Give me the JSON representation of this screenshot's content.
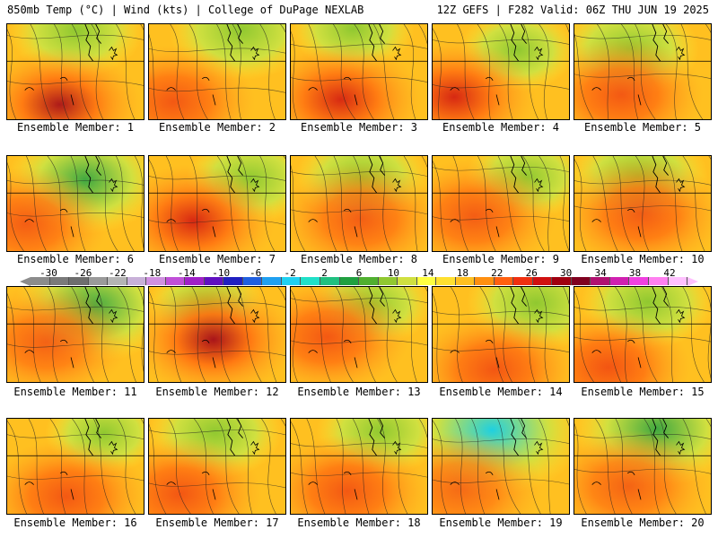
{
  "header": {
    "left": "850mb Temp (°C) | Wind (kts) | College of DuPage NEXLAB",
    "right": "12Z GEFS | F282 Valid: 06Z THU JUN 19 2025"
  },
  "colorbar": {
    "ticks": [
      "-30",
      "-26",
      "-22",
      "-18",
      "-14",
      "-10",
      "-6",
      "-2",
      "2",
      "6",
      "10",
      "14",
      "18",
      "22",
      "26",
      "30",
      "34",
      "38",
      "42"
    ],
    "colors": [
      "#8c8c8c",
      "#7a7a7a",
      "#6e6e6e",
      "#9a9a9a",
      "#b4b4b4",
      "#c8b0d8",
      "#d090e0",
      "#c050d8",
      "#a020c8",
      "#6010c0",
      "#2020c0",
      "#2060e0",
      "#20a0f0",
      "#20d0f0",
      "#20e0c8",
      "#20c080",
      "#20a040",
      "#50b030",
      "#90c830",
      "#d0e040",
      "#ffff40",
      "#ffe030",
      "#ffc020",
      "#ff9010",
      "#ff6010",
      "#f03010",
      "#d01010",
      "#a00010",
      "#800020",
      "#b01070",
      "#d020b0",
      "#f040e0",
      "#ff80f0",
      "#ffc0ff"
    ]
  },
  "members": [
    {
      "label": "Ensemble Member: 1",
      "warm": 0.72,
      "cool": 0.35,
      "hot": 0.85
    },
    {
      "label": "Ensemble Member: 2",
      "warm": 0.62,
      "cool": 0.45,
      "hot": 0.35
    },
    {
      "label": "Ensemble Member: 3",
      "warm": 0.7,
      "cool": 0.25,
      "hot": 0.75
    },
    {
      "label": "Ensemble Member: 4",
      "warm": 0.72,
      "cool": 0.2,
      "hot": 0.7
    },
    {
      "label": "Ensemble Member: 5",
      "warm": 0.62,
      "cool": 0.4,
      "hot": 0.6
    },
    {
      "label": "Ensemble Member: 6",
      "warm": 0.55,
      "cool": 0.55,
      "hot": 0.2
    },
    {
      "label": "Ensemble Member: 7",
      "warm": 0.72,
      "cool": 0.3,
      "hot": 0.65
    },
    {
      "label": "Ensemble Member: 8",
      "warm": 0.55,
      "cool": 0.35,
      "hot": 0.4
    },
    {
      "label": "Ensemble Member: 9",
      "warm": 0.55,
      "cool": 0.25,
      "hot": 0.4
    },
    {
      "label": "Ensemble Member: 10",
      "warm": 0.6,
      "cool": 0.4,
      "hot": 0.5
    },
    {
      "label": "Ensemble Member: 11",
      "warm": 0.5,
      "cool": 0.6,
      "hot": 0.3
    },
    {
      "label": "Ensemble Member: 12",
      "warm": 0.8,
      "cool": 0.2,
      "hot": 0.85
    },
    {
      "label": "Ensemble Member: 13",
      "warm": 0.62,
      "cool": 0.25,
      "hot": 0.45
    },
    {
      "label": "Ensemble Member: 14",
      "warm": 0.65,
      "cool": 0.4,
      "hot": 0.5
    },
    {
      "label": "Ensemble Member: 15",
      "warm": 0.68,
      "cool": 0.35,
      "hot": 0.55
    },
    {
      "label": "Ensemble Member: 16",
      "warm": 0.62,
      "cool": 0.2,
      "hot": 0.45
    },
    {
      "label": "Ensemble Member: 17",
      "warm": 0.65,
      "cool": 0.35,
      "hot": 0.6
    },
    {
      "label": "Ensemble Member: 18",
      "warm": 0.62,
      "cool": 0.3,
      "hot": 0.5
    },
    {
      "label": "Ensemble Member: 19",
      "warm": 0.35,
      "cool": 0.85,
      "hot": 0.2
    },
    {
      "label": "Ensemble Member: 20",
      "warm": 0.45,
      "cool": 0.65,
      "hot": 0.45
    }
  ]
}
